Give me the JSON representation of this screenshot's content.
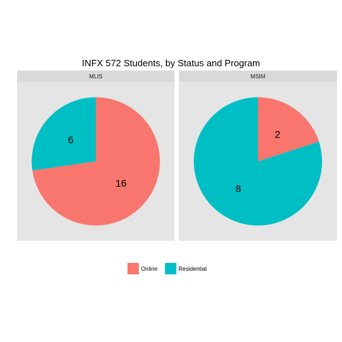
{
  "chart_data": {
    "type": "pie",
    "title": "INFX 572 Students, by Status and Program",
    "legend": {
      "position": "bottom",
      "entries": [
        {
          "name": "Online",
          "color": "#F8766D"
        },
        {
          "name": "Residential",
          "color": "#00BFC4"
        }
      ]
    },
    "panels": [
      {
        "label": "MLIS",
        "slices": [
          {
            "category": "Online",
            "value": 16
          },
          {
            "category": "Residential",
            "value": 6
          }
        ]
      },
      {
        "label": "MSIM",
        "slices": [
          {
            "category": "Online",
            "value": 2
          },
          {
            "category": "Residential",
            "value": 8
          }
        ]
      }
    ],
    "panel_background": "#E5E5E5",
    "strip_background": "#D9D9D9"
  }
}
